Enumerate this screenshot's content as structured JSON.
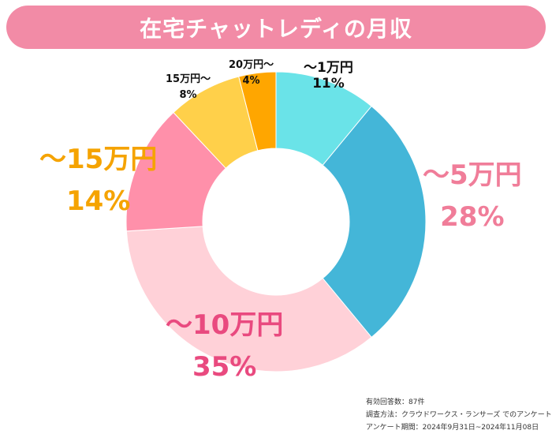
{
  "title": "在宅チャットレディの月収",
  "chart_data": {
    "type": "pie",
    "categories": [
      "～1万円",
      "～5万円",
      "～10万円",
      "～15万円",
      "15万円～",
      "20万円～"
    ],
    "values": [
      11,
      28,
      35,
      14,
      8,
      4
    ],
    "value_labels": [
      "11%",
      "28%",
      "35%",
      "14%",
      "8%",
      "4%"
    ],
    "colors": [
      "#6ae3e8",
      "#44b6d8",
      "#ffd1d8",
      "#ff90aa",
      "#ffd04a",
      "#ffa600"
    ],
    "label_colors": [
      "#111111",
      "#f07d99",
      "#e94a7f",
      "#f5a300",
      "#111111",
      "#111111"
    ],
    "donut": true,
    "start_angle_deg": 0,
    "direction": "clockwise"
  },
  "footnote": {
    "line1": "有効回答数：87件",
    "line2": "調査方法：クラウドワークス・ランサーズ でのアンケート",
    "line3": "アンケート期間：2024年9月31日~2024年11月08日"
  }
}
